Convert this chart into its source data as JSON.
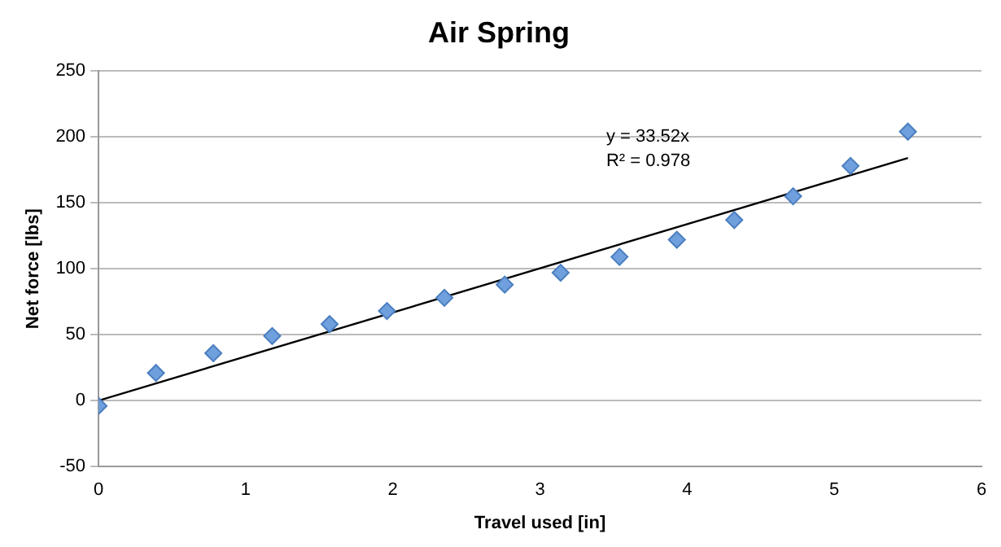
{
  "chart_data": {
    "type": "scatter",
    "title": "Air Spring",
    "xlabel": "Travel used [in]",
    "ylabel": "Net force [lbs]",
    "xlim": [
      0,
      6
    ],
    "xticks": [
      0,
      1,
      2,
      3,
      4,
      5,
      6
    ],
    "ylim": [
      -50,
      250
    ],
    "yticks": [
      -50,
      0,
      50,
      100,
      150,
      200,
      250
    ],
    "grid": "y",
    "marker": "diamond",
    "series": [
      {
        "color": "#6f9fdc",
        "x": [
          0,
          0.39,
          0.78,
          1.18,
          1.57,
          1.96,
          2.35,
          2.76,
          3.14,
          3.54,
          3.93,
          4.32,
          4.72,
          5.11,
          5.5
        ],
        "values": [
          -4,
          21,
          36,
          49,
          58,
          68,
          78,
          88,
          97,
          109,
          122,
          137,
          155,
          178,
          204
        ]
      },
      {
        "type": "line",
        "marker": "none",
        "color": "#000000",
        "x": [
          0,
          5.5
        ],
        "values": [
          0,
          184
        ]
      }
    ],
    "annotations": [
      "y = 33.52x",
      "R² = 0.978"
    ]
  }
}
